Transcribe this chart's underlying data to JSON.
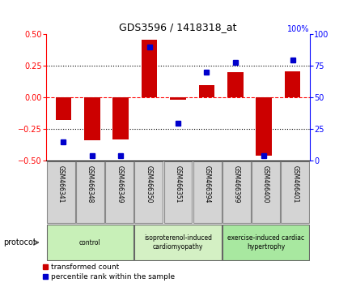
{
  "title": "GDS3596 / 1418318_at",
  "samples": [
    "GSM466341",
    "GSM466348",
    "GSM466349",
    "GSM466350",
    "GSM466351",
    "GSM466394",
    "GSM466399",
    "GSM466400",
    "GSM466401"
  ],
  "transformed_count": [
    -0.18,
    -0.34,
    -0.33,
    0.46,
    -0.02,
    0.1,
    0.2,
    -0.46,
    0.21
  ],
  "percentile_rank": [
    15,
    4,
    4,
    90,
    30,
    70,
    78,
    4,
    80
  ],
  "ylim_left": [
    -0.5,
    0.5
  ],
  "ylim_right": [
    0,
    100
  ],
  "yticks_left": [
    -0.5,
    -0.25,
    0.0,
    0.25,
    0.5
  ],
  "yticks_right": [
    0,
    25,
    50,
    75,
    100
  ],
  "hlines": [
    -0.25,
    0.25
  ],
  "bar_color": "#cc0000",
  "dot_color": "#0000cc",
  "groups": [
    {
      "label": "control",
      "start": 0,
      "end": 3,
      "color": "#c8f0b8"
    },
    {
      "label": "isoproterenol-induced\ncardiomyopathy",
      "start": 3,
      "end": 6,
      "color": "#d4f0c4"
    },
    {
      "label": "exercise-induced cardiac\nhypertrophy",
      "start": 6,
      "end": 9,
      "color": "#a8e8a0"
    }
  ],
  "protocol_label": "protocol",
  "legend_tc_label": "transformed count",
  "legend_pr_label": "percentile rank within the sample",
  "bar_width": 0.55,
  "bg_color": "#ffffff",
  "plot_bg": "#ffffff",
  "sample_box_color": "#d4d4d4"
}
